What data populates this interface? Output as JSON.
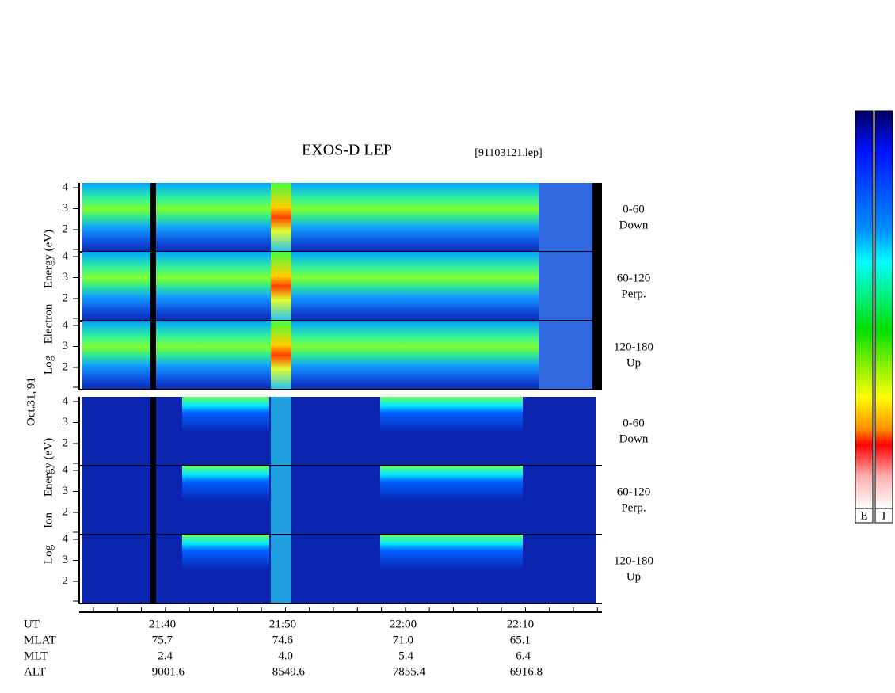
{
  "title": "EXOS-D LEP",
  "file": "[91103121.lep]",
  "date": "Oct.31,'91",
  "energy_ticks": [
    "4",
    "3",
    "2"
  ],
  "electron": {
    "axis_label": [
      "Log",
      "Electron",
      "Energy (eV)"
    ],
    "panels": [
      {
        "angle": "0-60",
        "direction": "Down"
      },
      {
        "angle": "60-120",
        "direction": "Perp."
      },
      {
        "angle": "120-180",
        "direction": "Up"
      }
    ]
  },
  "ion": {
    "axis_label": [
      "Log",
      "Ion",
      "Energy (eV)"
    ],
    "panels": [
      {
        "angle": "0-60",
        "direction": "Down"
      },
      {
        "angle": "60-120",
        "direction": "Perp."
      },
      {
        "angle": "120-180",
        "direction": "Up"
      }
    ]
  },
  "time_axis": {
    "rows": [
      {
        "label": "UT",
        "values": [
          "21:40",
          "21:50",
          "22:00",
          "22:10"
        ]
      },
      {
        "label": "MLAT",
        "values": [
          "75.7",
          "74.6",
          "71.0",
          "65.1"
        ]
      },
      {
        "label": "MLT",
        "values": [
          "2.4",
          "4.0",
          "5.4",
          "6.4"
        ]
      },
      {
        "label": "ALT",
        "values": [
          "9001.6",
          "8549.6",
          "7855.4",
          "6916.8"
        ]
      }
    ]
  },
  "colorbar": {
    "labels": [
      "E",
      "I"
    ]
  }
}
